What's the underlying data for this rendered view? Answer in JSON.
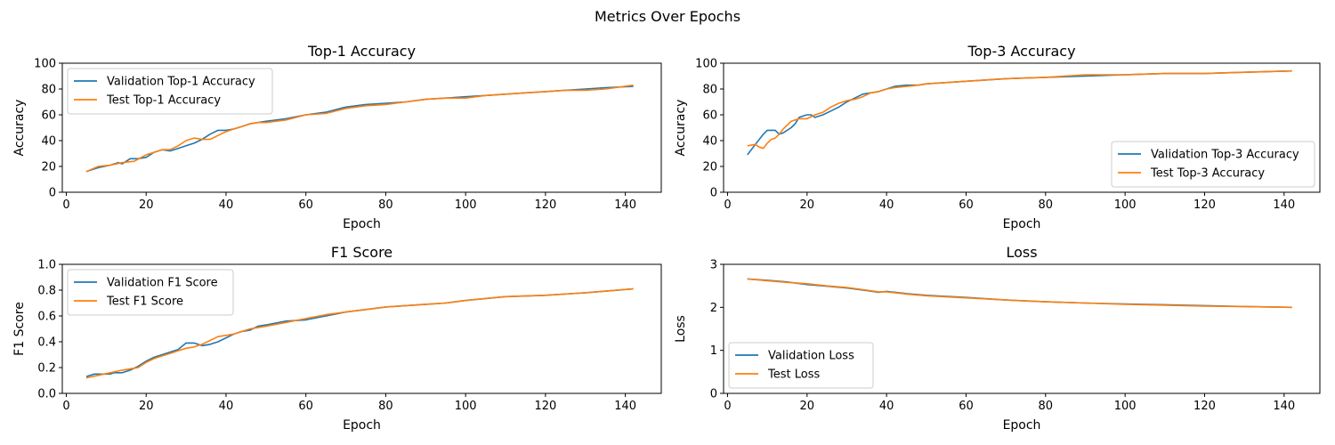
{
  "figure": {
    "suptitle": "Metrics Over Epochs",
    "colors": {
      "validation": "#1f77b4",
      "test": "#ff7f0e"
    }
  },
  "chart_data": [
    {
      "type": "line",
      "title": "Top-1 Accuracy",
      "xlabel": "Epoch",
      "ylabel": "Accuracy",
      "xlim": [
        -1,
        149
      ],
      "ylim": [
        0,
        100
      ],
      "xticks": [
        0,
        20,
        40,
        60,
        80,
        100,
        120,
        140
      ],
      "yticks": [
        0,
        20,
        40,
        60,
        80,
        100
      ],
      "tick_decimals": 0,
      "legend": "upper left",
      "grid": false,
      "series": [
        {
          "name": "Validation Top-1 Accuracy",
          "color": "#1f77b4",
          "x": [
            5,
            8,
            11,
            13,
            14,
            16,
            18,
            20,
            22,
            24,
            26,
            28,
            30,
            32,
            34,
            36,
            38,
            40,
            42,
            44,
            46,
            48,
            50,
            55,
            60,
            65,
            70,
            75,
            80,
            85,
            90,
            95,
            100,
            105,
            110,
            115,
            120,
            125,
            130,
            135,
            142
          ],
          "y": [
            16,
            19,
            21,
            23,
            22,
            26,
            26,
            27,
            31,
            33,
            32,
            34,
            36,
            38,
            41,
            45,
            48,
            48,
            49,
            51,
            53,
            54,
            55,
            57,
            60,
            62,
            66,
            68,
            69,
            70,
            72,
            73,
            74,
            75,
            76,
            77,
            78,
            79,
            80,
            81,
            82
          ]
        },
        {
          "name": "Test Top-1 Accuracy",
          "color": "#ff7f0e",
          "x": [
            5,
            8,
            11,
            14,
            17,
            20,
            22,
            24,
            26,
            28,
            30,
            32,
            34,
            36,
            38,
            40,
            42,
            44,
            46,
            48,
            50,
            55,
            60,
            65,
            70,
            75,
            80,
            85,
            90,
            95,
            100,
            105,
            110,
            115,
            120,
            125,
            130,
            135,
            142
          ],
          "y": [
            16,
            20,
            21,
            23,
            24,
            29,
            31,
            33,
            33,
            36,
            40,
            42,
            41,
            41,
            44,
            47,
            49,
            51,
            53,
            54,
            54,
            56,
            60,
            61,
            65,
            67,
            68,
            70,
            72,
            73,
            73,
            75,
            76,
            77,
            78,
            79,
            79,
            80,
            83
          ]
        }
      ]
    },
    {
      "type": "line",
      "title": "Top-3 Accuracy",
      "xlabel": "Epoch",
      "ylabel": "Accuracy",
      "xlim": [
        -1,
        149
      ],
      "ylim": [
        0,
        100
      ],
      "xticks": [
        0,
        20,
        40,
        60,
        80,
        100,
        120,
        140
      ],
      "yticks": [
        0,
        20,
        40,
        60,
        80,
        100
      ],
      "tick_decimals": 0,
      "legend": "lower right",
      "grid": false,
      "series": [
        {
          "name": "Validation Top-3 Accuracy",
          "color": "#1f77b4",
          "x": [
            5,
            7,
            9,
            10,
            11,
            12,
            13,
            14,
            16,
            17,
            18,
            19,
            20,
            21,
            22,
            24,
            26,
            28,
            30,
            32,
            34,
            36,
            38,
            40,
            42,
            45,
            48,
            50,
            60,
            70,
            80,
            90,
            100,
            110,
            120,
            130,
            142
          ],
          "y": [
            29,
            37,
            45,
            48,
            48,
            48,
            45,
            46,
            50,
            53,
            58,
            59,
            60,
            60,
            58,
            60,
            63,
            66,
            70,
            73,
            76,
            77,
            78,
            80,
            82,
            83,
            83,
            84,
            86,
            88,
            89,
            90,
            91,
            92,
            92,
            93,
            94
          ]
        },
        {
          "name": "Test Top-3 Accuracy",
          "color": "#ff7f0e",
          "x": [
            5,
            7,
            8,
            9,
            10,
            11,
            12,
            13,
            14,
            16,
            18,
            20,
            22,
            24,
            26,
            28,
            30,
            32,
            34,
            36,
            38,
            40,
            42,
            45,
            48,
            50,
            60,
            70,
            80,
            90,
            100,
            110,
            120,
            130,
            142
          ],
          "y": [
            36,
            37,
            35,
            34,
            38,
            41,
            42,
            45,
            49,
            55,
            57,
            57,
            60,
            62,
            66,
            69,
            71,
            72,
            74,
            77,
            78,
            80,
            81,
            82,
            83,
            84,
            86,
            88,
            89,
            91,
            91,
            92,
            92,
            93,
            94
          ]
        }
      ]
    },
    {
      "type": "line",
      "title": "F1 Score",
      "xlabel": "Epoch",
      "ylabel": "F1 Score",
      "xlim": [
        -1,
        149
      ],
      "ylim": [
        0,
        1
      ],
      "xticks": [
        0,
        20,
        40,
        60,
        80,
        100,
        120,
        140
      ],
      "yticks": [
        0,
        0.2,
        0.4,
        0.6,
        0.8,
        1.0
      ],
      "tick_decimals": 1,
      "legend": "upper left",
      "grid": false,
      "series": [
        {
          "name": "Validation F1 Score",
          "color": "#1f77b4",
          "x": [
            5,
            7,
            9,
            11,
            12,
            14,
            16,
            18,
            20,
            22,
            24,
            26,
            28,
            30,
            32,
            34,
            36,
            38,
            40,
            42,
            44,
            46,
            48,
            50,
            55,
            60,
            65,
            70,
            75,
            80,
            85,
            90,
            95,
            100,
            110,
            120,
            130,
            142
          ],
          "y": [
            0.13,
            0.15,
            0.15,
            0.15,
            0.16,
            0.16,
            0.18,
            0.21,
            0.25,
            0.28,
            0.3,
            0.32,
            0.34,
            0.39,
            0.39,
            0.37,
            0.38,
            0.4,
            0.43,
            0.46,
            0.48,
            0.49,
            0.52,
            0.53,
            0.56,
            0.57,
            0.6,
            0.63,
            0.65,
            0.67,
            0.68,
            0.69,
            0.7,
            0.72,
            0.75,
            0.76,
            0.78,
            0.81
          ]
        },
        {
          "name": "Test F1 Score",
          "color": "#ff7f0e",
          "x": [
            5,
            8,
            11,
            14,
            16,
            18,
            20,
            22,
            24,
            26,
            28,
            30,
            32,
            34,
            36,
            38,
            40,
            42,
            44,
            46,
            48,
            50,
            55,
            60,
            65,
            70,
            75,
            80,
            85,
            90,
            95,
            100,
            110,
            120,
            130,
            142
          ],
          "y": [
            0.12,
            0.14,
            0.16,
            0.18,
            0.19,
            0.2,
            0.24,
            0.27,
            0.29,
            0.31,
            0.33,
            0.35,
            0.36,
            0.38,
            0.41,
            0.44,
            0.45,
            0.46,
            0.48,
            0.5,
            0.51,
            0.52,
            0.55,
            0.58,
            0.61,
            0.63,
            0.65,
            0.67,
            0.68,
            0.69,
            0.7,
            0.72,
            0.75,
            0.76,
            0.78,
            0.81
          ]
        }
      ]
    },
    {
      "type": "line",
      "title": "Loss",
      "xlabel": "Epoch",
      "ylabel": "Loss",
      "xlim": [
        -1,
        149
      ],
      "ylim": [
        0,
        3
      ],
      "xticks": [
        0,
        20,
        40,
        60,
        80,
        100,
        120,
        140
      ],
      "yticks": [
        0,
        1,
        2,
        3
      ],
      "tick_decimals": 0,
      "legend": "lower left",
      "grid": false,
      "series": [
        {
          "name": "Validation Loss",
          "color": "#1f77b4",
          "x": [
            5,
            10,
            15,
            20,
            25,
            30,
            35,
            38,
            40,
            45,
            50,
            60,
            70,
            80,
            90,
            100,
            110,
            120,
            130,
            142
          ],
          "y": [
            2.66,
            2.63,
            2.59,
            2.53,
            2.49,
            2.45,
            2.39,
            2.35,
            2.37,
            2.32,
            2.28,
            2.23,
            2.17,
            2.13,
            2.1,
            2.08,
            2.06,
            2.04,
            2.02,
            2.0
          ]
        },
        {
          "name": "Test Loss",
          "color": "#ff7f0e",
          "x": [
            5,
            10,
            15,
            20,
            25,
            30,
            35,
            38,
            40,
            45,
            50,
            60,
            70,
            80,
            90,
            100,
            110,
            120,
            130,
            142
          ],
          "y": [
            2.66,
            2.62,
            2.58,
            2.55,
            2.5,
            2.46,
            2.4,
            2.36,
            2.36,
            2.31,
            2.27,
            2.22,
            2.17,
            2.13,
            2.1,
            2.07,
            2.05,
            2.03,
            2.02,
            2.0
          ]
        }
      ]
    }
  ]
}
